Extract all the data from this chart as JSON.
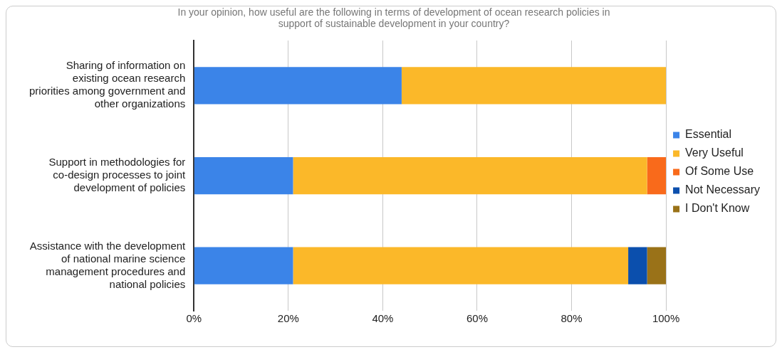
{
  "chart_data": {
    "type": "bar",
    "orientation": "horizontal",
    "stacked": true,
    "title": "In your opinion, how useful are the following in terms of development of ocean research policies in support of sustainable development in your country?",
    "categories": [
      "Sharing of information on existing ocean research priorities among government and other organizations",
      "Support in methodologies for co-design processes to joint development of policies",
      "Assistance with the development of national marine science management procedures and national policies"
    ],
    "series": [
      {
        "name": "Essential",
        "color": "#3b84e8",
        "values": [
          44,
          21,
          21
        ]
      },
      {
        "name": "Very Useful",
        "color": "#fbb829",
        "values": [
          56,
          75,
          71
        ]
      },
      {
        "name": "Of Some Use",
        "color": "#f96a1b",
        "values": [
          0,
          4,
          0
        ]
      },
      {
        "name": "Not Necessary",
        "color": "#0b4fad",
        "values": [
          0,
          0,
          4
        ]
      },
      {
        "name": "I Don't Know",
        "color": "#9a7218",
        "values": [
          0,
          0,
          4
        ]
      }
    ],
    "xlim": [
      0,
      100
    ],
    "xticks": [
      {
        "value": 0,
        "label": "0%"
      },
      {
        "value": 20,
        "label": "20%"
      },
      {
        "value": 40,
        "label": "40%"
      },
      {
        "value": 60,
        "label": "60%"
      },
      {
        "value": 80,
        "label": "80%"
      },
      {
        "value": 100,
        "label": "100%"
      }
    ],
    "grid": "x",
    "legend": "right"
  }
}
